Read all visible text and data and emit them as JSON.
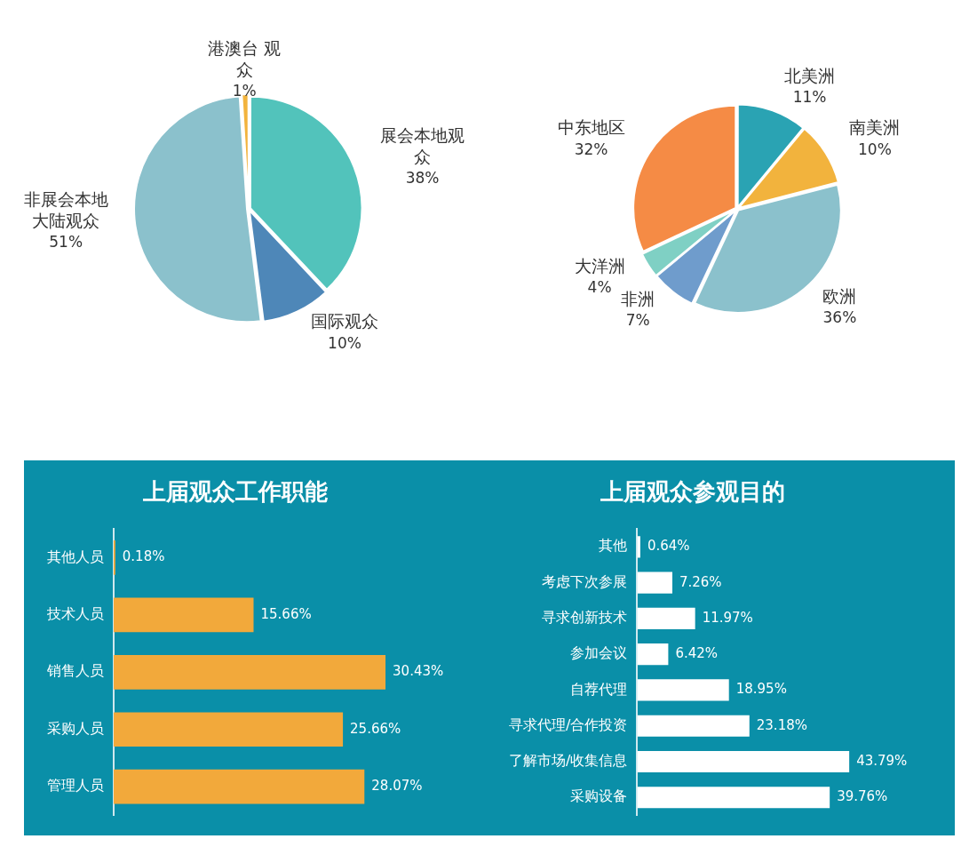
{
  "chart_data": [
    {
      "type": "pie",
      "categories": [
        "展会本地观众",
        "国际观众",
        "非展会本地大陆观众",
        "港澳台 观众"
      ],
      "values": [
        38,
        10,
        51,
        1
      ],
      "colors": [
        "#52c3bb",
        "#4e87b8",
        "#8bc1cc",
        "#f2b33d"
      ],
      "value_labels": [
        "38%",
        "10%",
        "51%",
        "1%"
      ]
    },
    {
      "type": "pie",
      "categories": [
        "北美洲",
        "南美洲",
        "欧洲",
        "非洲",
        "大洋洲",
        "中东地区"
      ],
      "values": [
        11,
        10,
        36,
        7,
        4,
        32
      ],
      "colors": [
        "#2aa3b3",
        "#f2b33d",
        "#8bc1cc",
        "#6f9ccc",
        "#7fd0c4",
        "#f58b45"
      ],
      "value_labels": [
        "11%",
        "10%",
        "36%",
        "7%",
        "4%",
        "32%"
      ]
    },
    {
      "type": "bar",
      "orientation": "horizontal",
      "title": "上届观众工作职能",
      "categories": [
        "其他人员",
        "技术人员",
        "销售人员",
        "采购人员",
        "管理人员"
      ],
      "values": [
        0.18,
        15.66,
        30.43,
        25.66,
        28.07
      ],
      "color": "#f2a93b",
      "value_labels": [
        "0.18%",
        "15.66%",
        "30.43%",
        "25.66%",
        "28.07%"
      ]
    },
    {
      "type": "bar",
      "orientation": "horizontal",
      "title": "上届观众参观目的",
      "categories": [
        "其他",
        "考虑下次参展",
        "寻求创新技术",
        "参加会议",
        "自荐代理",
        "寻求代理/合作投资",
        "了解市场/收集信息",
        "采购设备"
      ],
      "values": [
        0.64,
        7.26,
        11.97,
        6.42,
        18.95,
        23.18,
        43.79,
        39.76
      ],
      "color": "#ffffff",
      "value_labels": [
        "0.64%",
        "7.26%",
        "11.97%",
        "6.42%",
        "18.95%",
        "23.18%",
        "43.79%",
        "39.76%"
      ]
    }
  ]
}
